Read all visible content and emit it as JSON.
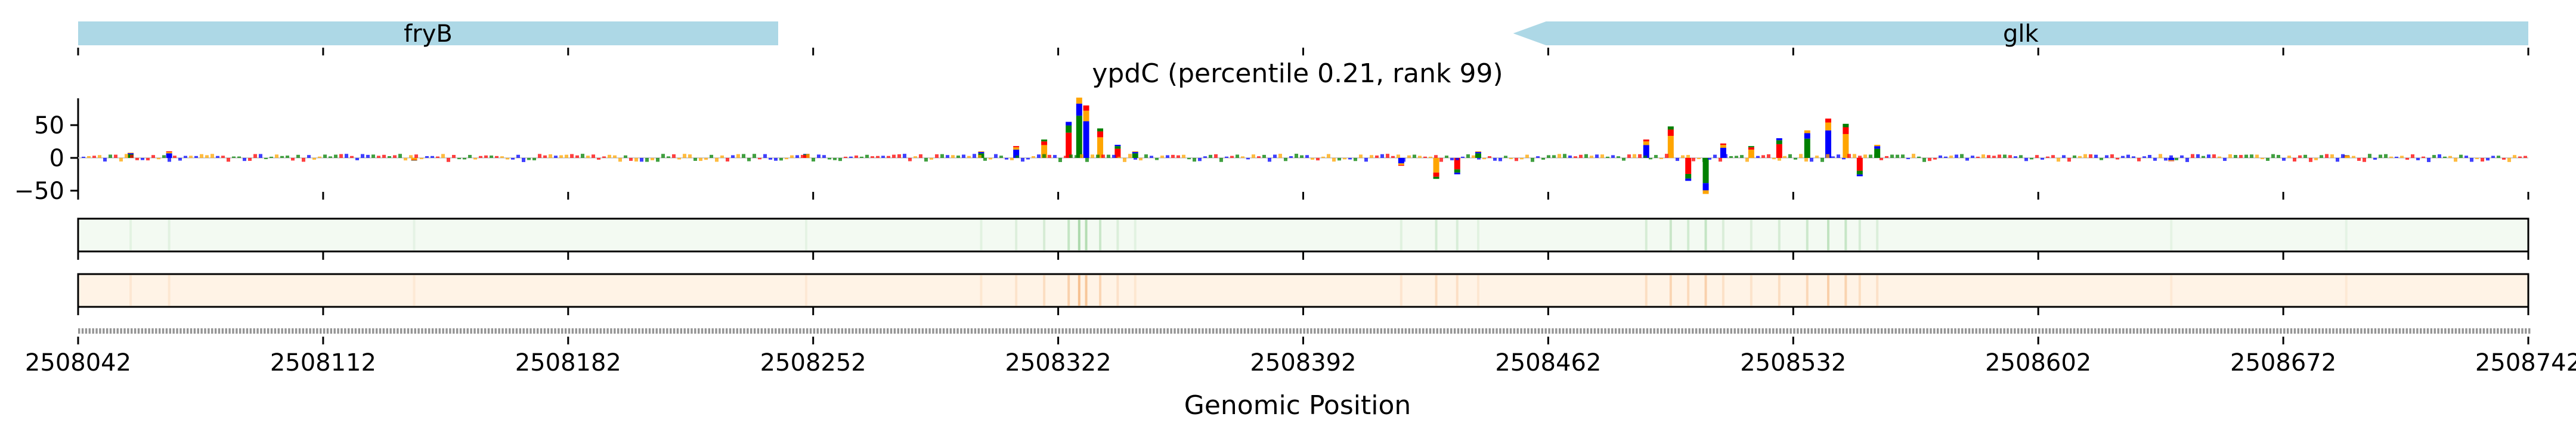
{
  "chart_data": {
    "type": "sequence-logo-track",
    "title": "ypdC (percentile 0.21, rank 99)",
    "xlabel": "Genomic Position",
    "xlim": [
      2508042,
      2508742
    ],
    "xticks": [
      2508042,
      2508112,
      2508182,
      2508252,
      2508322,
      2508392,
      2508462,
      2508532,
      2508602,
      2508672,
      2508742
    ],
    "xtick_labels": [
      "2508042",
      "2508112",
      "2508182",
      "2508252",
      "2508322",
      "2508392",
      "2508462",
      "2508532",
      "2508602",
      "2508672",
      "2508742"
    ],
    "genes": [
      {
        "name": "fryB",
        "start": 2508042,
        "end": 2508242,
        "strand": "+",
        "color": "#add8e6"
      },
      {
        "name": "glk",
        "start": 2508452,
        "end": 2508742,
        "strand": "-",
        "color": "#add8e6"
      }
    ],
    "logo": {
      "ylim": [
        -60,
        95
      ],
      "yticks": [
        50,
        0,
        -50
      ],
      "ytick_labels": [
        "50",
        "0",
        "−50"
      ],
      "base_colors": {
        "A": "#008000",
        "C": "#0000ff",
        "G": "#ffa500",
        "T": "#ff0000"
      },
      "peaks": [
        {
          "position": 2508057,
          "value": 8
        },
        {
          "position": 2508068,
          "value": 10
        },
        {
          "position": 2508138,
          "value": -4
        },
        {
          "position": 2508250,
          "value": 6
        },
        {
          "position": 2508300,
          "value": 10
        },
        {
          "position": 2508310,
          "value": 18
        },
        {
          "position": 2508318,
          "value": 28
        },
        {
          "position": 2508325,
          "value": 55
        },
        {
          "position": 2508328,
          "value": 92
        },
        {
          "position": 2508330,
          "value": 80
        },
        {
          "position": 2508334,
          "value": 45
        },
        {
          "position": 2508339,
          "value": 20
        },
        {
          "position": 2508344,
          "value": 10
        },
        {
          "position": 2508420,
          "value": -12
        },
        {
          "position": 2508430,
          "value": -32
        },
        {
          "position": 2508436,
          "value": -25
        },
        {
          "position": 2508442,
          "value": 10
        },
        {
          "position": 2508490,
          "value": 28
        },
        {
          "position": 2508497,
          "value": 48
        },
        {
          "position": 2508502,
          "value": -35
        },
        {
          "position": 2508507,
          "value": -55
        },
        {
          "position": 2508512,
          "value": 22
        },
        {
          "position": 2508520,
          "value": 18
        },
        {
          "position": 2508528,
          "value": 30
        },
        {
          "position": 2508536,
          "value": 42
        },
        {
          "position": 2508542,
          "value": 60
        },
        {
          "position": 2508547,
          "value": 52
        },
        {
          "position": 2508551,
          "value": -28
        },
        {
          "position": 2508556,
          "value": 20
        },
        {
          "position": 2508640,
          "value": -5
        },
        {
          "position": 2508690,
          "value": 4
        }
      ]
    },
    "heatmap_tracks": [
      {
        "name": "track-1",
        "base_color": "#f3faf2",
        "line_color": "#9ad19a"
      },
      {
        "name": "track-2",
        "base_color": "#fff3e6",
        "line_color": "#f4b37a"
      }
    ]
  }
}
